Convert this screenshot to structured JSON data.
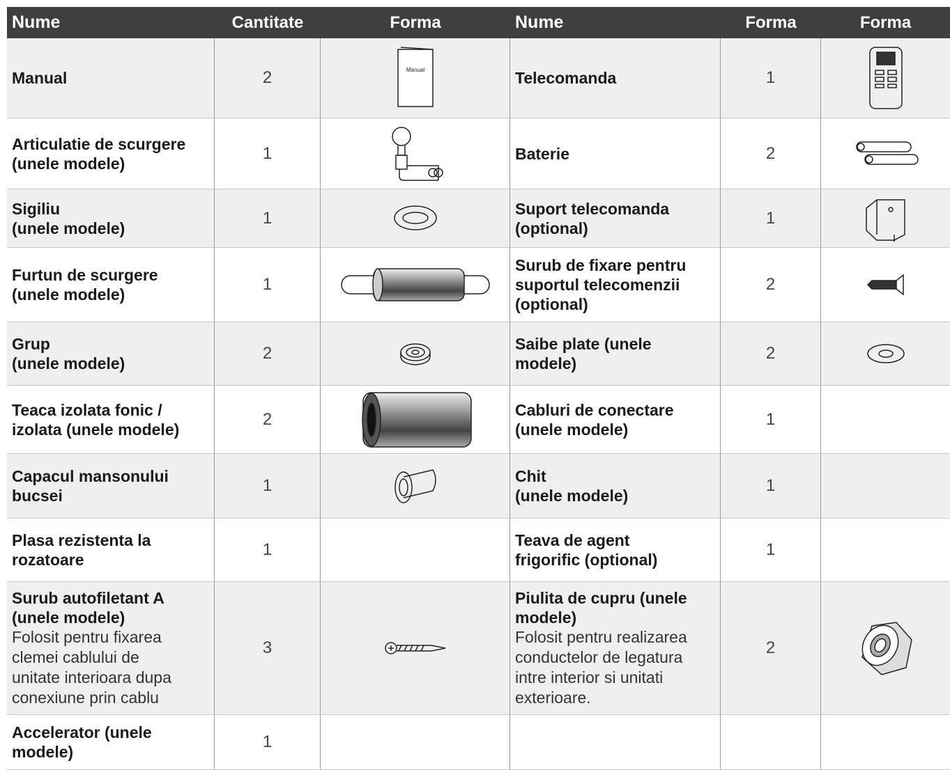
{
  "table": {
    "header": [
      "Nume",
      "Cantitate",
      "Forma",
      "Nume",
      "Forma",
      "Forma"
    ],
    "rows": [
      {
        "name": "Manual",
        "quantity": 2,
        "icon_label": "Manual",
        "name_2": "Telecomanda",
        "quantity_2": 1
      },
      {
        "name": "Articulatie de scurgere\n(unele modele)",
        "quantity": 1,
        "name_2": "Baterie",
        "quantity_2": 2
      },
      {
        "name": "Sigiliu\n(unele modele)",
        "quantity": 1,
        "name_2": "Suport telecomanda\n(optional)",
        "quantity_2": 1
      },
      {
        "name": "Furtun de scurgere\n(unele modele)",
        "quantity": 1,
        "name_2": "Surub de fixare pentru\nsuportul telecomenzii\n(optional)",
        "quantity_2": 2
      },
      {
        "name": "Grup\n(unele modele)",
        "quantity": 2,
        "name_2": "Saibe plate (unele\nmodele)",
        "quantity_2": 2
      },
      {
        "name": "Teaca izolata fonic /\nizolata (unele modele)",
        "quantity": 2,
        "name_2": "Cabluri de conectare\n(unele modele)",
        "quantity_2": 1
      },
      {
        "name": "Capacul mansonului\nbucsei",
        "quantity": 1,
        "name_2": "Chit\n(unele modele)",
        "quantity_2": 1
      },
      {
        "name": "Plasa rezistenta la\nrozatoare",
        "quantity": 1,
        "name_2": "Teava de agent\nfrigorific (optional)",
        "quantity_2": 1
      },
      {
        "name": "Surub autofiletant A\n(unele modele)",
        "note": "Folosit pentru fixarea\nclemei cablului de\nunitate interioara dupa\nconexiune prin cablu",
        "quantity": 3,
        "name_2": "Piulita de cupru (unele\nmodele)",
        "note_2": "Folosit pentru realizarea\nconductelor de legatura\nintre interior si unitati\nexterioare.",
        "quantity_2": 2
      },
      {
        "name": "Accelerator (unele\nmodele)",
        "quantity": 1
      }
    ]
  }
}
